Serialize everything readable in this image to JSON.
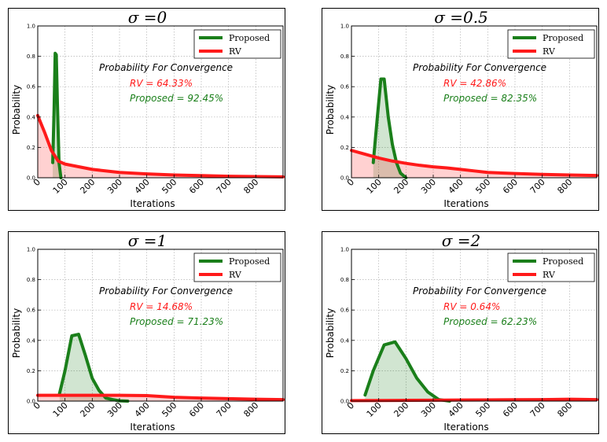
{
  "chart_data": [
    {
      "type": "line",
      "title": "σ =0",
      "xlabel": "Iterations",
      "ylabel": "Probability",
      "xlim": [
        0,
        900
      ],
      "ylim": [
        0,
        1.0
      ],
      "x_ticks": [
        0,
        100,
        200,
        300,
        400,
        500,
        600,
        700,
        800
      ],
      "y_ticks": [
        "0.0",
        "0.2",
        "0.4",
        "0.6",
        "0.8",
        "1.0"
      ],
      "legend": [
        "Proposed",
        "RV"
      ],
      "annotation": {
        "title": "Probability For Convergence",
        "rv": "RV = 64.33%",
        "proposed": "Proposed = 92.45%"
      },
      "series": [
        {
          "name": "Proposed",
          "color": "#1a7f1a",
          "points": [
            [
              55,
              0.1
            ],
            [
              60,
              0.45
            ],
            [
              64,
              0.82
            ],
            [
              68,
              0.81
            ],
            [
              72,
              0.5
            ],
            [
              78,
              0.1
            ],
            [
              85,
              0.0
            ]
          ]
        },
        {
          "name": "RV",
          "color": "#ff1a1a",
          "points": [
            [
              0,
              0.41
            ],
            [
              25,
              0.3
            ],
            [
              50,
              0.18
            ],
            [
              75,
              0.11
            ],
            [
              100,
              0.09
            ],
            [
              200,
              0.055
            ],
            [
              300,
              0.035
            ],
            [
              400,
              0.025
            ],
            [
              500,
              0.018
            ],
            [
              600,
              0.014
            ],
            [
              700,
              0.01
            ],
            [
              800,
              0.008
            ],
            [
              900,
              0.006
            ]
          ]
        }
      ]
    },
    {
      "type": "line",
      "title": "σ =0.5",
      "xlabel": "Iterations",
      "ylabel": "Probability",
      "xlim": [
        0,
        900
      ],
      "ylim": [
        0,
        1.0
      ],
      "x_ticks": [
        0,
        100,
        200,
        300,
        400,
        500,
        600,
        700,
        800
      ],
      "y_ticks": [
        "0.0",
        "0.2",
        "0.4",
        "0.6",
        "0.8",
        "1.0"
      ],
      "legend": [
        "Proposed",
        "RV"
      ],
      "annotation": {
        "title": "Probability For Convergence",
        "rv": "RV = 42.86%",
        "proposed": "Proposed = 82.35%"
      },
      "series": [
        {
          "name": "Proposed",
          "color": "#1a7f1a",
          "points": [
            [
              80,
              0.1
            ],
            [
              95,
              0.4
            ],
            [
              108,
              0.65
            ],
            [
              120,
              0.65
            ],
            [
              135,
              0.4
            ],
            [
              150,
              0.22
            ],
            [
              165,
              0.1
            ],
            [
              180,
              0.03
            ],
            [
              200,
              0.0
            ]
          ]
        },
        {
          "name": "RV",
          "color": "#ff1a1a",
          "points": [
            [
              0,
              0.18
            ],
            [
              50,
              0.155
            ],
            [
              100,
              0.13
            ],
            [
              150,
              0.11
            ],
            [
              200,
              0.095
            ],
            [
              250,
              0.082
            ],
            [
              300,
              0.072
            ],
            [
              350,
              0.065
            ],
            [
              400,
              0.055
            ],
            [
              450,
              0.045
            ],
            [
              500,
              0.035
            ],
            [
              600,
              0.028
            ],
            [
              700,
              0.022
            ],
            [
              800,
              0.018
            ],
            [
              900,
              0.015
            ]
          ]
        }
      ]
    },
    {
      "type": "line",
      "title": "σ =1",
      "xlabel": "Iterations",
      "ylabel": "Probability",
      "xlim": [
        0,
        900
      ],
      "ylim": [
        0,
        1.0
      ],
      "x_ticks": [
        0,
        100,
        200,
        300,
        400,
        500,
        600,
        700,
        800
      ],
      "y_ticks": [
        "0.0",
        "0.2",
        "0.4",
        "0.6",
        "0.8",
        "1.0"
      ],
      "legend": [
        "Proposed",
        "RV"
      ],
      "annotation": {
        "title": "Probability For Convergence",
        "rv": "RV = 14.68%",
        "proposed": "Proposed = 71.23%"
      },
      "series": [
        {
          "name": "Proposed",
          "color": "#1a7f1a",
          "points": [
            [
              80,
              0.05
            ],
            [
              100,
              0.2
            ],
            [
              125,
              0.43
            ],
            [
              150,
              0.44
            ],
            [
              175,
              0.3
            ],
            [
              200,
              0.15
            ],
            [
              225,
              0.07
            ],
            [
              250,
              0.02
            ],
            [
              275,
              0.01
            ],
            [
              300,
              0.002
            ],
            [
              330,
              0.0
            ]
          ]
        },
        {
          "name": "RV",
          "color": "#ff1a1a",
          "points": [
            [
              0,
              0.038
            ],
            [
              100,
              0.038
            ],
            [
              200,
              0.038
            ],
            [
              300,
              0.038
            ],
            [
              400,
              0.036
            ],
            [
              500,
              0.025
            ],
            [
              600,
              0.02
            ],
            [
              700,
              0.016
            ],
            [
              800,
              0.012
            ],
            [
              900,
              0.01
            ]
          ]
        }
      ]
    },
    {
      "type": "line",
      "title": "σ =2",
      "xlabel": "Iterations",
      "ylabel": "Probability",
      "xlim": [
        0,
        900
      ],
      "ylim": [
        0,
        1.0
      ],
      "x_ticks": [
        0,
        100,
        200,
        300,
        400,
        500,
        600,
        700,
        800
      ],
      "y_ticks": [
        "0.0",
        "0.2",
        "0.4",
        "0.6",
        "0.8",
        "1.0"
      ],
      "legend": [
        "Proposed",
        "RV"
      ],
      "annotation": {
        "title": "Probability For Convergence",
        "rv": "RV = 0.64%",
        "proposed": "Proposed = 62.23%"
      },
      "series": [
        {
          "name": "Proposed",
          "color": "#1a7f1a",
          "points": [
            [
              50,
              0.04
            ],
            [
              80,
              0.2
            ],
            [
              120,
              0.37
            ],
            [
              160,
              0.39
            ],
            [
              200,
              0.28
            ],
            [
              240,
              0.15
            ],
            [
              280,
              0.06
            ],
            [
              320,
              0.01
            ],
            [
              360,
              0.0
            ]
          ]
        },
        {
          "name": "RV",
          "color": "#ff1a1a",
          "points": [
            [
              0,
              0.003
            ],
            [
              100,
              0.004
            ],
            [
              200,
              0.005
            ],
            [
              300,
              0.006
            ],
            [
              400,
              0.007
            ],
            [
              500,
              0.008
            ],
            [
              600,
              0.009
            ],
            [
              700,
              0.01
            ],
            [
              800,
              0.012
            ],
            [
              900,
              0.01
            ]
          ]
        }
      ]
    }
  ]
}
